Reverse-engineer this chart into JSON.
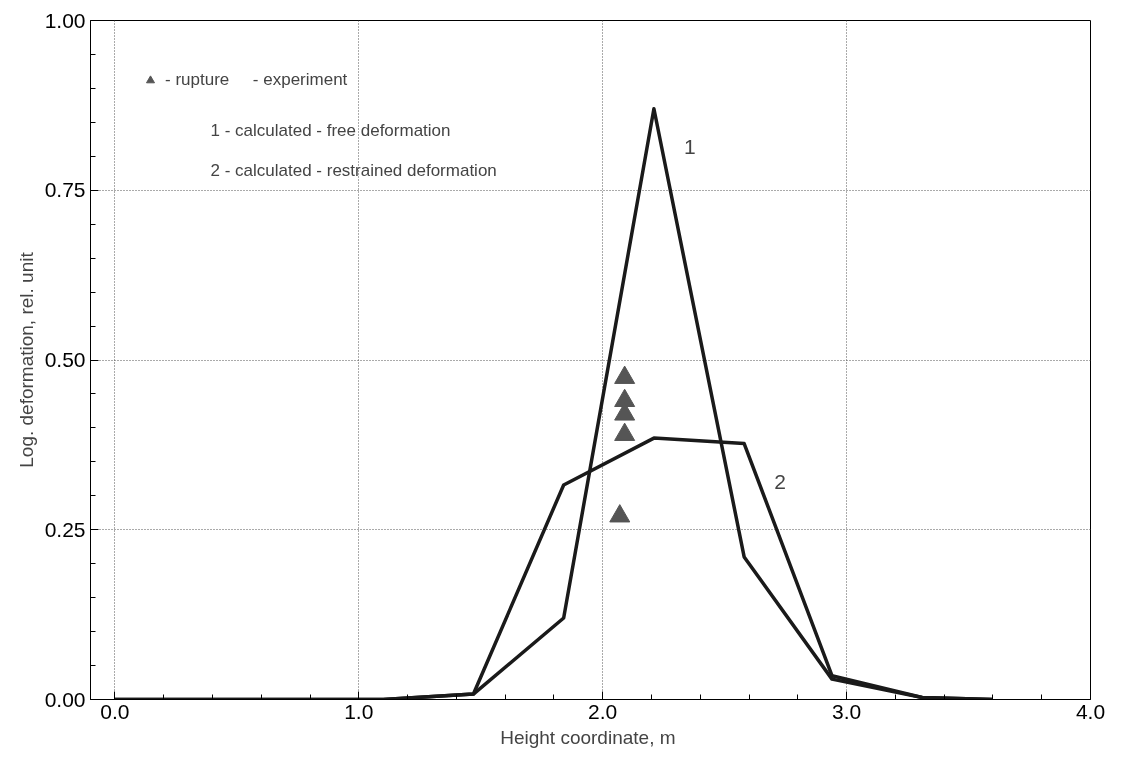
{
  "chart_data": {
    "type": "line",
    "xlabel": "Height  coordinate, m",
    "ylabel": "Log. deformation, rel. unit",
    "xlim": [
      -0.1,
      4.0
    ],
    "ylim": [
      0,
      1.0
    ],
    "xticks": [
      {
        "value": 0,
        "label": "0.0"
      },
      {
        "value": 1,
        "label": "1.0"
      },
      {
        "value": 2,
        "label": "2.0"
      },
      {
        "value": 3,
        "label": "3.0"
      },
      {
        "value": 4,
        "label": "4.0"
      }
    ],
    "yticks": [
      {
        "value": 0,
        "label": "0.00"
      },
      {
        "value": 0.25,
        "label": "0.25"
      },
      {
        "value": 0.5,
        "label": "0.50"
      },
      {
        "value": 0.75,
        "label": "0.75"
      },
      {
        "value": 1,
        "label": "1.00"
      }
    ],
    "grid": true,
    "legend": "top left",
    "line_style": "solid",
    "series": [
      {
        "name": "1",
        "color": "#1a1a1a",
        "x": [
          0,
          1.1,
          1.47,
          1.84,
          2.21,
          2.58,
          2.94,
          3.31,
          3.6
        ],
        "values": [
          0,
          0,
          0.008,
          0.12,
          0.87,
          0.21,
          0.03,
          0.003,
          0
        ]
      },
      {
        "name": "2",
        "color": "#1a1a1a",
        "x": [
          0,
          1.1,
          1.47,
          1.84,
          2.21,
          2.58,
          2.94,
          3.31,
          3.6
        ],
        "values": [
          0,
          0,
          0.008,
          0.316,
          0.385,
          0.377,
          0.035,
          0.003,
          0
        ]
      },
      {
        "type": "scatter",
        "name": "- rupture     - experiment",
        "color": "#555555",
        "marker": "triangle",
        "x": [
          2.09,
          2.09,
          2.09,
          2.09,
          2.07
        ],
        "values": [
          0.474,
          0.44,
          0.42,
          0.39,
          0.27
        ]
      }
    ],
    "annotations": [
      "1 - calculated - free deformation",
      "2 - calculated - restrained deformation"
    ]
  }
}
